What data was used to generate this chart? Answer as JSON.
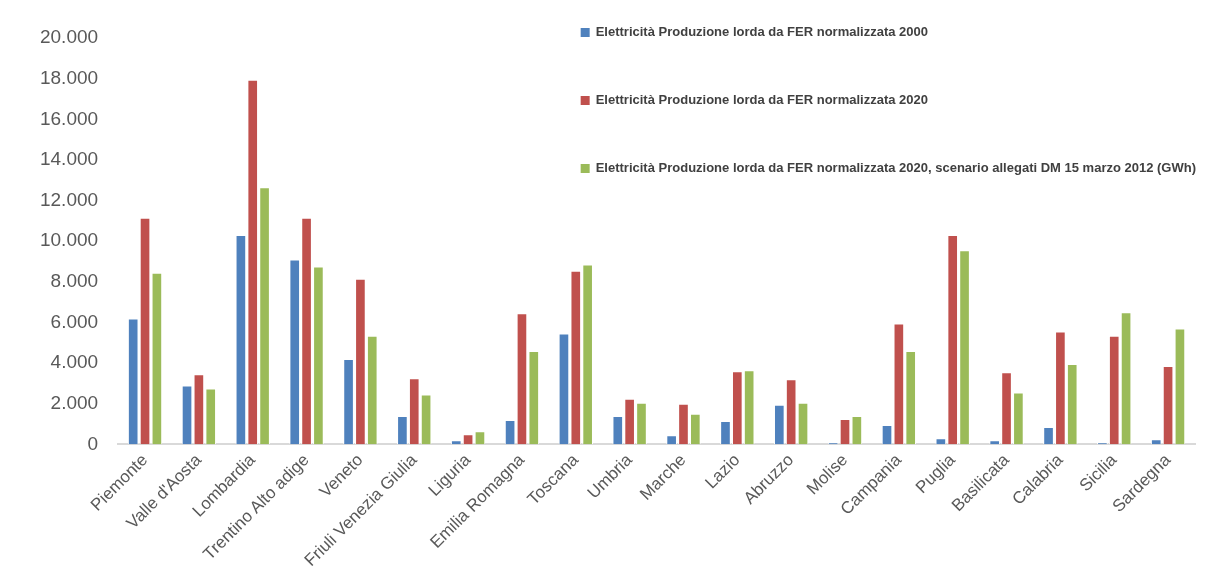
{
  "chart_data": {
    "type": "bar",
    "categories": [
      "Piemonte",
      "Valle d'Aosta",
      "Lombardia",
      "Trentino Alto adige",
      "Veneto",
      "Friuli Venezia Giulia",
      "Liguria",
      "Emilia Romagna",
      "Toscana",
      "Umbria",
      "Marche",
      "Lazio",
      "Abruzzo",
      "Molise",
      "Campania",
      "Puglia",
      "Basilicata",
      "Calabria",
      "Sicilia",
      "Sardegna"
    ],
    "series": [
      {
        "name": "Elettricità Produzione lorda da FER normalizzata 2000",
        "color": "#4f81bd",
        "values": [
          6200,
          2900,
          10300,
          9100,
          4200,
          1400,
          200,
          1200,
          5450,
          1400,
          450,
          1150,
          1950,
          100,
          950,
          300,
          200,
          850,
          100,
          250
        ]
      },
      {
        "name": "Elettricità Produzione lorda da FER normalizzata 2020",
        "color": "#c0504d",
        "values": [
          11150,
          3450,
          17950,
          11150,
          8150,
          3250,
          500,
          6450,
          8550,
          2250,
          2000,
          3600,
          3200,
          1250,
          5950,
          10300,
          3550,
          5550,
          5350,
          3850
        ]
      },
      {
        "name": "Elettricità Produzione lorda da FER normalizzata 2020, scenario allegati DM 15 marzo 2012 (GWh)",
        "color": "#9bbb59",
        "values": [
          8450,
          2750,
          12650,
          8750,
          5350,
          2450,
          650,
          4600,
          8850,
          2050,
          1500,
          3650,
          2050,
          1400,
          4600,
          9550,
          2550,
          3950,
          6500,
          5700
        ]
      }
    ],
    "ylim": [
      0,
      20000
    ],
    "yticks": [
      {
        "value": 0,
        "label": "0"
      },
      {
        "value": 2000,
        "label": "2.000"
      },
      {
        "value": 4000,
        "label": "4.000"
      },
      {
        "value": 6000,
        "label": "6.000"
      },
      {
        "value": 8000,
        "label": "8.000"
      },
      {
        "value": 10000,
        "label": "10.000"
      },
      {
        "value": 12000,
        "label": "12.000"
      },
      {
        "value": 14000,
        "label": "14.000"
      },
      {
        "value": 16000,
        "label": "16.000"
      },
      {
        "value": 18000,
        "label": "18.000"
      },
      {
        "value": 20000,
        "label": "20.000"
      }
    ],
    "grid": false,
    "legend": "top right"
  }
}
